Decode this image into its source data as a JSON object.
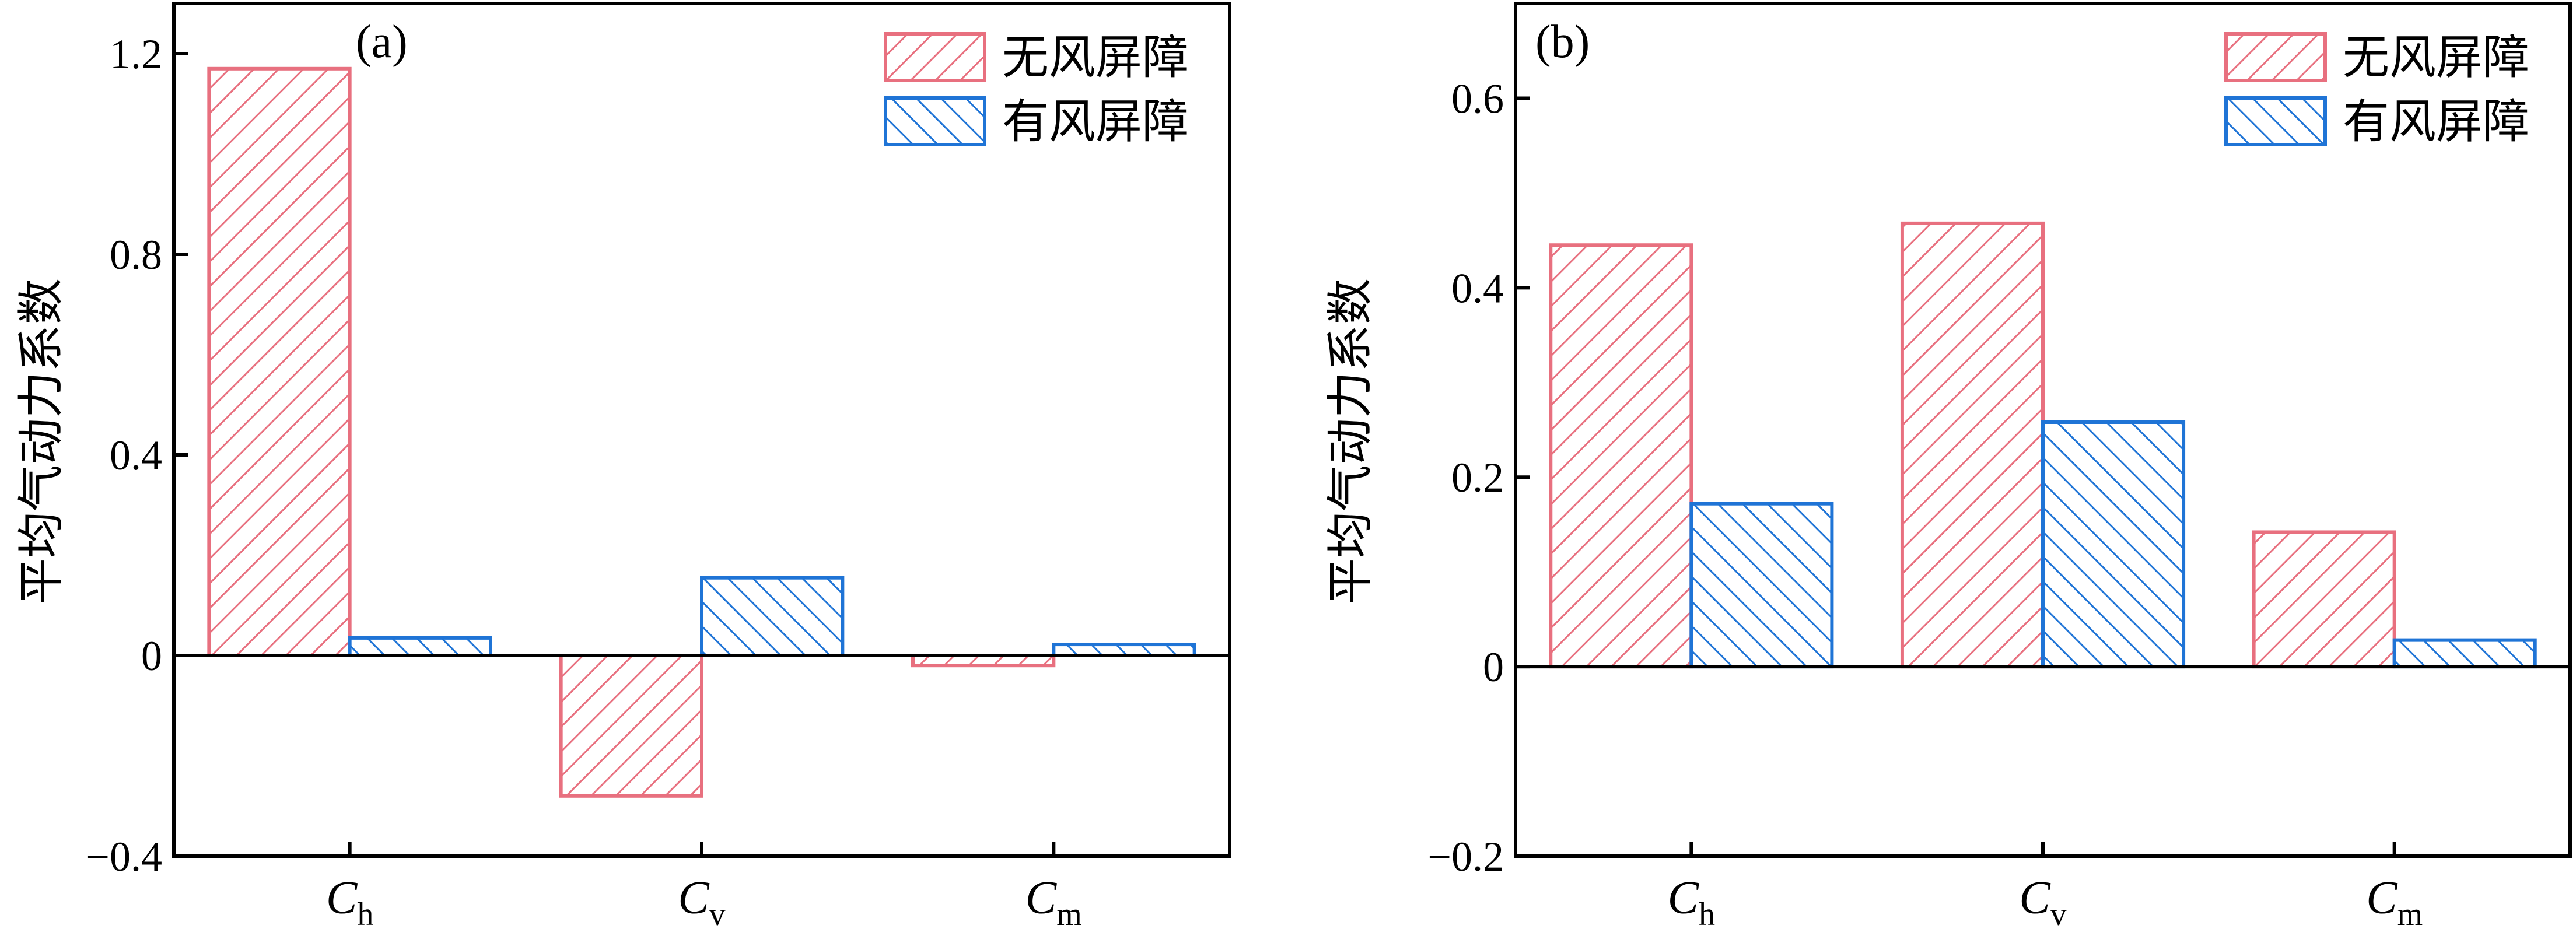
{
  "colors": {
    "no_barrier": "#e8707f",
    "with_barrier": "#1f74d6",
    "axis": "#000000"
  },
  "chart_data": [
    {
      "type": "bar",
      "panel_label": "(a)",
      "ylabel": "平均气动力系数",
      "categories": [
        {
          "symbol": "C",
          "sub": "h"
        },
        {
          "symbol": "C",
          "sub": "v"
        },
        {
          "symbol": "C",
          "sub": "m"
        }
      ],
      "ylim": [
        -0.4,
        1.3
      ],
      "yticks": [
        -0.4,
        0,
        0.4,
        0.8,
        1.2
      ],
      "ytick_labels": [
        "−0.4",
        "0",
        "0.4",
        "0.8",
        "1.2"
      ],
      "legend_position": "top-right",
      "series": [
        {
          "name": "无风屏障",
          "color": "#e8707f",
          "hatch": "forward",
          "values": [
            1.17,
            -0.28,
            -0.02
          ]
        },
        {
          "name": "有风屏障",
          "color": "#1f74d6",
          "hatch": "backward",
          "values": [
            0.035,
            0.155,
            0.022
          ]
        }
      ]
    },
    {
      "type": "bar",
      "panel_label": "(b)",
      "ylabel": "平均气动力系数",
      "categories": [
        {
          "symbol": "C",
          "sub": "h"
        },
        {
          "symbol": "C",
          "sub": "v"
        },
        {
          "symbol": "C",
          "sub": "m"
        }
      ],
      "ylim": [
        -0.2,
        0.7
      ],
      "yticks": [
        -0.2,
        0,
        0.2,
        0.4,
        0.6
      ],
      "ytick_labels": [
        "−0.2",
        "0",
        "0.2",
        "0.4",
        "0.6"
      ],
      "legend_position": "top-right",
      "series": [
        {
          "name": "无风屏障",
          "color": "#e8707f",
          "hatch": "forward",
          "values": [
            0.445,
            0.468,
            0.142
          ]
        },
        {
          "name": "有风屏障",
          "color": "#1f74d6",
          "hatch": "backward",
          "values": [
            0.172,
            0.258,
            0.028
          ]
        }
      ]
    }
  ]
}
